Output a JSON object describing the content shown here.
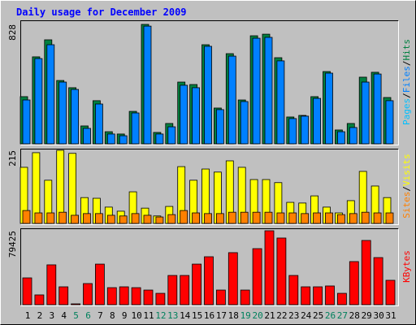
{
  "chart_data": [
    {
      "type": "bar",
      "title": "Daily usage for December 2009",
      "ylim": [
        0,
        828
      ],
      "yticks": [
        828
      ],
      "label_prefix": {
        "text": "Pages",
        "color": "#00C0FF"
      },
      "separator": "/",
      "series": [
        {
          "name": "Hits",
          "color": "#008040",
          "values": [
            327,
            603,
            721,
            439,
            389,
            124,
            299,
            84,
            68,
            225,
            828,
            79,
            141,
            428,
            411,
            687,
            248,
            625,
            304,
            749,
            760,
            597,
            186,
            197,
            327,
            501,
            96,
            141,
            462,
            496,
            321
          ]
        },
        {
          "name": "Files",
          "color": "#0080FF",
          "values": [
            304,
            591,
            687,
            428,
            377,
            107,
            276,
            68,
            56,
            214,
            816,
            68,
            118,
            406,
            389,
            676,
            237,
            608,
            293,
            732,
            738,
            575,
            175,
            192,
            315,
            490,
            84,
            113,
            428,
            484,
            299
          ]
        }
      ]
    },
    {
      "type": "bar",
      "ylim": [
        0,
        215
      ],
      "yticks": [
        215
      ],
      "separator": "/",
      "series": [
        {
          "name": "Visits",
          "color": "#FFFF00",
          "values": [
            165,
            208,
            127,
            215,
            206,
            76,
            74,
            48,
            36,
            93,
            45,
            22,
            50,
            167,
            127,
            160,
            151,
            184,
            165,
            129,
            129,
            120,
            62,
            60,
            81,
            48,
            31,
            67,
            153,
            110,
            76
          ]
        },
        {
          "name": "Sites",
          "color": "#FF8000",
          "values": [
            38,
            31,
            31,
            33,
            24,
            29,
            29,
            24,
            22,
            29,
            24,
            19,
            26,
            38,
            31,
            29,
            29,
            33,
            33,
            33,
            33,
            31,
            31,
            29,
            31,
            31,
            26,
            29,
            33,
            31,
            31
          ]
        }
      ]
    },
    {
      "type": "bar",
      "ylim": [
        0,
        79425
      ],
      "yticks": [
        79425
      ],
      "series": [
        {
          "name": "KBytes",
          "color": "#FF0000",
          "values": [
            28800,
            10500,
            42800,
            19200,
            900,
            22700,
            43600,
            18300,
            19200,
            18300,
            15700,
            12200,
            31400,
            31400,
            43600,
            51500,
            15700,
            55900,
            15700,
            60200,
            79425,
            71600,
            31400,
            19200,
            19200,
            20100,
            12200,
            46300,
            69000,
            50600,
            26200
          ]
        }
      ],
      "categories": [
        "1",
        "2",
        "3",
        "4",
        "5",
        "6",
        "7",
        "8",
        "9",
        "10",
        "11",
        "12",
        "13",
        "14",
        "15",
        "16",
        "17",
        "18",
        "19",
        "20",
        "21",
        "22",
        "23",
        "24",
        "25",
        "26",
        "27",
        "28",
        "29",
        "30",
        "31"
      ],
      "category_colors": [
        "#000000",
        "#000000",
        "#000000",
        "#000000",
        "#00805C",
        "#00805C",
        "#000000",
        "#000000",
        "#000000",
        "#000000",
        "#000000",
        "#00805C",
        "#00805C",
        "#000000",
        "#000000",
        "#000000",
        "#000000",
        "#000000",
        "#00805C",
        "#00805C",
        "#000000",
        "#000000",
        "#000000",
        "#000000",
        "#000000",
        "#00805C",
        "#00805C",
        "#000000",
        "#000000",
        "#000000",
        "#000000"
      ]
    }
  ]
}
